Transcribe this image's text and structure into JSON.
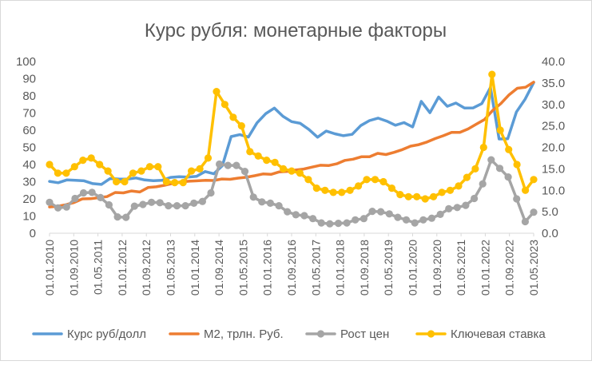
{
  "chart_data": {
    "type": "line",
    "title": "Курс рубля: монетарные факторы",
    "left_axis": {
      "ylim": [
        0,
        100
      ],
      "ticks": [
        "0",
        "10",
        "20",
        "30",
        "40",
        "50",
        "60",
        "70",
        "80",
        "90",
        "100"
      ]
    },
    "right_axis": {
      "ylim": [
        0,
        40
      ],
      "ticks": [
        "0.0",
        "5.0",
        "10.0",
        "15.0",
        "20.0",
        "25.0",
        "30.0",
        "35.0",
        "40.0"
      ]
    },
    "x_tick_labels": [
      "01.01.2010",
      "01.09.2010",
      "01.05.2011",
      "01.01.2012",
      "01.09.2012",
      "01.05.2013",
      "01.01.2014",
      "01.09.2014",
      "01.05.2015",
      "01.01.2016",
      "01.09.2016",
      "01.05.2017",
      "01.01.2018",
      "01.09.2018",
      "01.05.2019",
      "01.01.2020",
      "01.09.2020",
      "01.05.2021",
      "01.01.2022",
      "01.09.2022",
      "01.05.2023"
    ],
    "legend_position": "bottom",
    "colors": {
      "usd": "#5B9BD5",
      "m2": "#ED7D31",
      "cpi": "#A5A5A5",
      "rate": "#FFC000",
      "axis": "#D9D9D9",
      "text": "#595959"
    },
    "series": [
      {
        "name": "Курс руб/долл",
        "key": "usd",
        "axis": "left",
        "marker": false,
        "values": [
          30.2,
          29.4,
          31.0,
          30.8,
          30.5,
          28.9,
          28.4,
          31.8,
          31.6,
          31.5,
          32.2,
          31.0,
          30.6,
          30.8,
          32.5,
          32.9,
          32.7,
          33.1,
          35.9,
          34.6,
          39.4,
          56.3,
          57.4,
          56.0,
          64.3,
          69.6,
          72.9,
          68.1,
          65.0,
          64.0,
          60.4,
          55.9,
          59.5,
          57.9,
          56.8,
          57.6,
          62.7,
          65.6,
          67.0,
          65.3,
          62.9,
          64.4,
          61.9,
          76.8,
          70.2,
          79.3,
          73.9,
          75.8,
          72.9,
          73.0,
          75.5,
          84.9,
          54.9,
          55.0,
          70.6,
          78.0,
          87.7
        ]
      },
      {
        "name": "M2, трлн. Руб.",
        "key": "m2",
        "axis": "left",
        "marker": false,
        "values": [
          15.3,
          15.7,
          16.6,
          17.9,
          20.0,
          20.1,
          20.7,
          21.3,
          23.7,
          23.5,
          24.6,
          24.0,
          26.6,
          27.0,
          27.9,
          29.0,
          29.9,
          30.3,
          30.5,
          30.8,
          30.7,
          31.6,
          31.4,
          32.1,
          32.6,
          33.5,
          34.5,
          34.3,
          35.7,
          36.0,
          36.8,
          37.4,
          38.5,
          39.6,
          39.4,
          40.4,
          42.4,
          43.1,
          44.5,
          44.5,
          46.5,
          45.8,
          47.1,
          48.7,
          50.7,
          51.6,
          53.1,
          55.1,
          56.8,
          58.7,
          58.7,
          60.7,
          63.5,
          66.2,
          71.5,
          75.5,
          80.6,
          84.4,
          85.0,
          88.0
        ]
      },
      {
        "name": "Рост цен",
        "key": "cpi",
        "axis": "right",
        "marker": true,
        "values": [
          7.2,
          5.9,
          6.1,
          8.1,
          9.4,
          9.5,
          8.3,
          6.6,
          3.8,
          3.7,
          6.3,
          6.7,
          7.2,
          7.1,
          6.4,
          6.4,
          6.4,
          7.0,
          7.4,
          9.4,
          16.1,
          15.8,
          15.8,
          14.4,
          8.4,
          7.3,
          7.0,
          6.4,
          5.0,
          4.3,
          4.1,
          3.4,
          2.4,
          2.2,
          2.3,
          2.4,
          3.1,
          3.4,
          5.1,
          5.0,
          4.5,
          3.7,
          3.1,
          2.4,
          3.1,
          3.5,
          4.4,
          5.7,
          6.0,
          6.5,
          8.1,
          11.5,
          17.1,
          15.1,
          13.1,
          8.0,
          2.7,
          4.9
        ]
      },
      {
        "name": "Ключевая ставка",
        "key": "rate",
        "axis": "right",
        "marker": true,
        "values": [
          16.0,
          14.0,
          14.0,
          15.5,
          17.0,
          17.5,
          16.0,
          14.5,
          12.0,
          12.0,
          14.0,
          14.5,
          15.5,
          15.5,
          12.0,
          11.8,
          11.8,
          14.5,
          15.0,
          17.5,
          33.0,
          30.0,
          27.0,
          25.0,
          19.0,
          18.0,
          17.0,
          16.5,
          15.0,
          14.5,
          14.0,
          12.5,
          10.5,
          10.0,
          9.5,
          9.5,
          10.0,
          11.0,
          12.5,
          12.5,
          12.0,
          10.5,
          9.0,
          8.5,
          8.5,
          8.0,
          8.5,
          9.5,
          10.0,
          11.0,
          13.0,
          15.0,
          20.0,
          37.0,
          24.0,
          19.5,
          16.0,
          10.0,
          12.5
        ]
      }
    ]
  }
}
